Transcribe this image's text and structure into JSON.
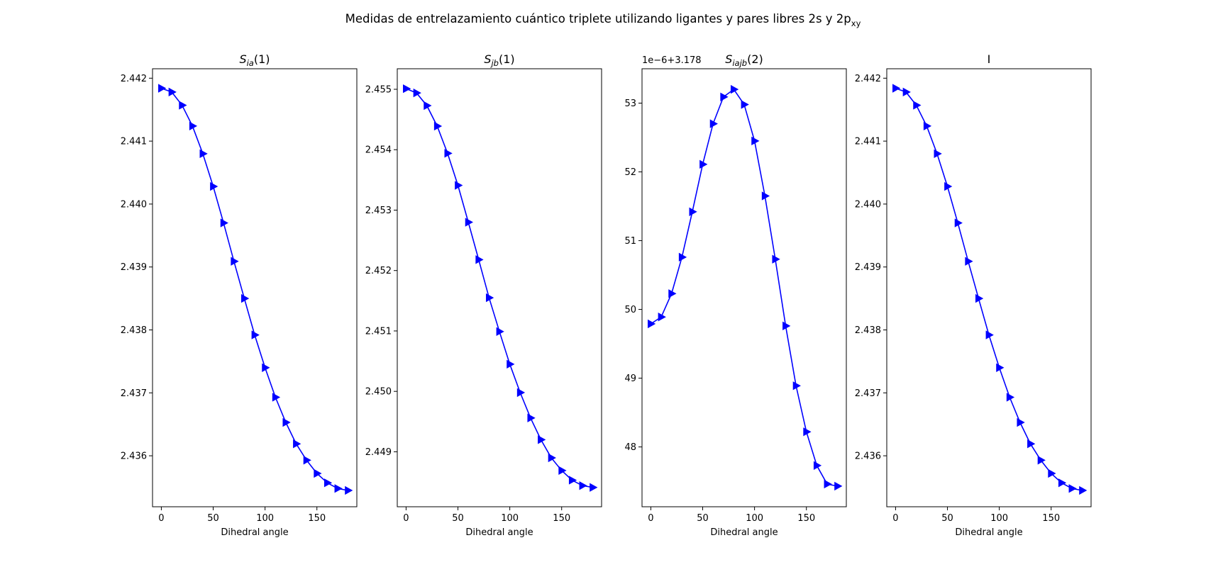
{
  "figure": {
    "title": "Medidas de entrelazamiento cuántico triplete utilizando ligantes y pares libres 2s y 2p",
    "title_sub": "xy"
  },
  "colors": {
    "series": "#0000ff",
    "frame": "#000000"
  },
  "chart_data": [
    {
      "type": "line",
      "title_main": "S",
      "title_sub": "ia",
      "title_tail": "(1)",
      "xlabel": "Dihedral angle",
      "ylabel": "",
      "marker": "triangle-right",
      "xlim": [
        -8.5,
        188.5
      ],
      "ylim": [
        2.43519,
        2.44215
      ],
      "xticks": [
        0,
        50,
        100,
        150
      ],
      "yticks": [
        2.436,
        2.437,
        2.438,
        2.439,
        2.44,
        2.441,
        2.442
      ],
      "ytick_labels": [
        "2.436",
        "2.437",
        "2.438",
        "2.439",
        "2.440",
        "2.441",
        "2.442"
      ],
      "offset_label": "",
      "grid": false,
      "series": [
        {
          "x": [
            0,
            10,
            20,
            30,
            40,
            50,
            60,
            70,
            80,
            90,
            100,
            110,
            120,
            130,
            140,
            150,
            160,
            170,
            180
          ],
          "values": [
            2.44184,
            2.44178,
            2.44157,
            2.44124,
            2.4408,
            2.44028,
            2.4397,
            2.43909,
            2.4385,
            2.43792,
            2.4374,
            2.43693,
            2.43653,
            2.43619,
            2.43593,
            2.43572,
            2.43557,
            2.43548,
            2.43545
          ]
        }
      ]
    },
    {
      "type": "line",
      "title_main": "S",
      "title_sub": "jb",
      "title_tail": "(1)",
      "xlabel": "Dihedral angle",
      "ylabel": "",
      "marker": "triangle-right",
      "xlim": [
        -8.5,
        188.5
      ],
      "ylim": [
        2.44809,
        2.45534
      ],
      "xticks": [
        0,
        50,
        100,
        150
      ],
      "yticks": [
        2.449,
        2.45,
        2.451,
        2.452,
        2.453,
        2.454,
        2.455
      ],
      "ytick_labels": [
        "2.449",
        "2.450",
        "2.451",
        "2.452",
        "2.453",
        "2.454",
        "2.455"
      ],
      "offset_label": "",
      "grid": false,
      "series": [
        {
          "x": [
            0,
            10,
            20,
            30,
            40,
            50,
            60,
            70,
            80,
            90,
            100,
            110,
            120,
            130,
            140,
            150,
            160,
            170,
            180
          ],
          "values": [
            2.45501,
            2.45494,
            2.45473,
            2.45439,
            2.45394,
            2.45341,
            2.4528,
            2.45218,
            2.45155,
            2.45099,
            2.45045,
            2.44998,
            2.44956,
            2.4492,
            2.4489,
            2.44869,
            2.44853,
            2.44844,
            2.44841
          ]
        }
      ]
    },
    {
      "type": "line",
      "title_main": "S",
      "title_sub": "iajb",
      "title_tail": "(2)",
      "xlabel": "Dihedral angle",
      "ylabel": "",
      "marker": "triangle-right",
      "xlim": [
        -8.5,
        188.5
      ],
      "ylim": [
        47.13,
        53.5
      ],
      "xticks": [
        0,
        50,
        100,
        150
      ],
      "yticks": [
        48,
        49,
        50,
        51,
        52,
        53
      ],
      "ytick_labels": [
        "48",
        "49",
        "50",
        "51",
        "52",
        "53"
      ],
      "offset_label": "1e−6+3.178",
      "grid": false,
      "series": [
        {
          "x": [
            0,
            10,
            20,
            30,
            40,
            50,
            60,
            70,
            80,
            90,
            100,
            110,
            120,
            130,
            140,
            150,
            160,
            170,
            180
          ],
          "values": [
            49.79,
            49.89,
            50.23,
            50.76,
            51.42,
            52.11,
            52.7,
            53.09,
            53.2,
            52.98,
            52.45,
            51.65,
            50.73,
            49.76,
            48.89,
            48.22,
            47.73,
            47.46,
            47.43
          ]
        }
      ]
    },
    {
      "type": "line",
      "title_main": "I",
      "title_sub": "",
      "title_tail": "",
      "xlabel": "Dihedral angle",
      "ylabel": "",
      "marker": "triangle-right",
      "xlim": [
        -8.5,
        188.5
      ],
      "ylim": [
        2.43519,
        2.44215
      ],
      "xticks": [
        0,
        50,
        100,
        150
      ],
      "yticks": [
        2.436,
        2.437,
        2.438,
        2.439,
        2.44,
        2.441,
        2.442
      ],
      "ytick_labels": [
        "2.436",
        "2.437",
        "2.438",
        "2.439",
        "2.440",
        "2.441",
        "2.442"
      ],
      "offset_label": "",
      "grid": false,
      "series": [
        {
          "x": [
            0,
            10,
            20,
            30,
            40,
            50,
            60,
            70,
            80,
            90,
            100,
            110,
            120,
            130,
            140,
            150,
            160,
            170,
            180
          ],
          "values": [
            2.44184,
            2.44178,
            2.44157,
            2.44124,
            2.4408,
            2.44028,
            2.4397,
            2.43909,
            2.4385,
            2.43792,
            2.4374,
            2.43693,
            2.43653,
            2.43619,
            2.43593,
            2.43572,
            2.43557,
            2.43548,
            2.43545
          ]
        }
      ]
    }
  ]
}
